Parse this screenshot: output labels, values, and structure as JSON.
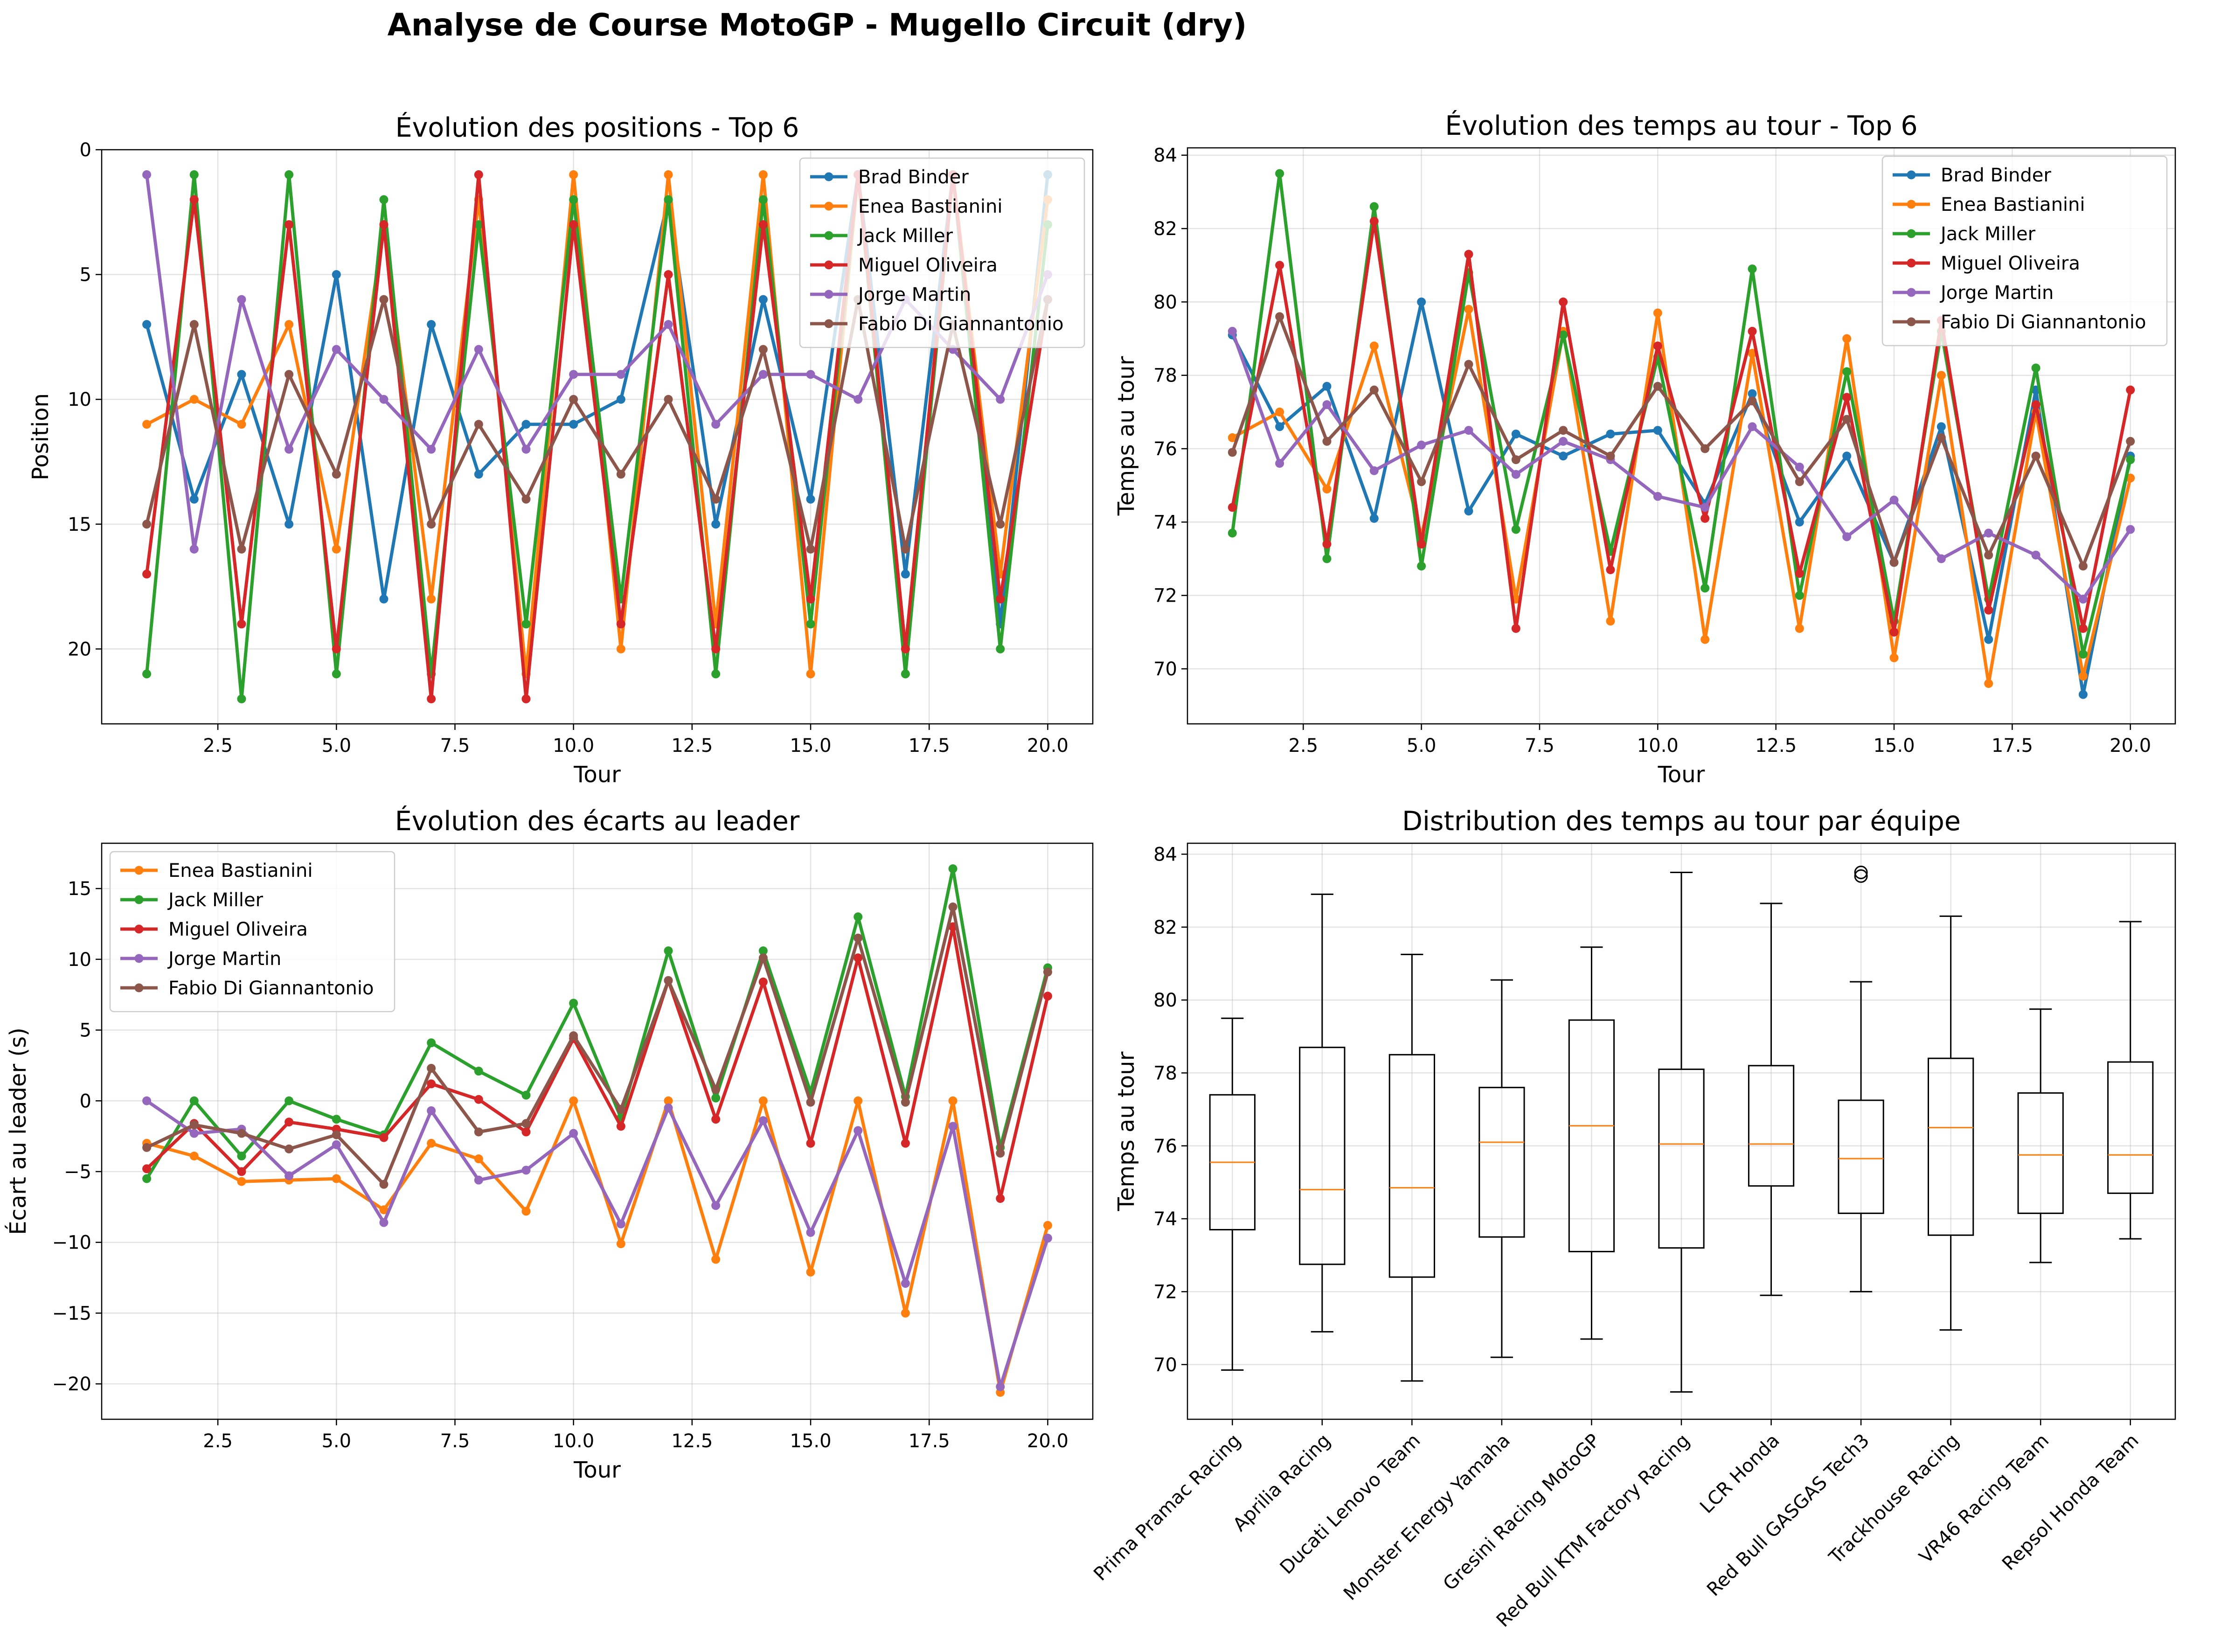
{
  "figure": {
    "title": "Analyse de Course MotoGP - Mugello Circuit (dry)"
  },
  "colors": {
    "Brad Binder": "#1f77b4",
    "Enea Bastianini": "#ff7f0e",
    "Jack Miller": "#2ca02c",
    "Miguel Oliveira": "#d62728",
    "Jorge Martin": "#9467bd",
    "Fabio Di Giannantonio": "#8c564b",
    "median": "#ff7f0e"
  },
  "chart_data": [
    {
      "id": "positions",
      "type": "line",
      "title": "Évolution des positions - Top 6",
      "xlabel": "Tour",
      "ylabel": "Position",
      "xlim": [
        0.05,
        20.95
      ],
      "ylim": [
        23,
        0
      ],
      "y_inverted": true,
      "xticks": [
        2.5,
        5.0,
        7.5,
        10.0,
        12.5,
        15.0,
        17.5,
        20.0
      ],
      "xtick_labels": [
        "2.5",
        "5.0",
        "7.5",
        "10.0",
        "12.5",
        "15.0",
        "17.5",
        "20.0"
      ],
      "yticks": [
        0,
        5,
        10,
        15,
        20
      ],
      "ytick_labels": [
        "0",
        "5",
        "10",
        "15",
        "20"
      ],
      "grid": true,
      "legend": "upper-right",
      "x": [
        1,
        2,
        3,
        4,
        5,
        6,
        7,
        8,
        9,
        10,
        11,
        12,
        13,
        14,
        15,
        16,
        17,
        18,
        19,
        20
      ],
      "series": [
        {
          "name": "Brad Binder",
          "values": [
            7,
            14,
            9,
            15,
            5,
            18,
            7,
            13,
            11,
            11,
            10,
            2,
            15,
            6,
            14,
            1,
            17,
            1,
            19,
            1
          ]
        },
        {
          "name": "Enea Bastianini",
          "values": [
            11,
            10,
            11,
            7,
            16,
            3,
            18,
            2,
            21,
            1,
            20,
            1,
            19,
            1,
            21,
            1,
            20,
            1,
            17,
            2
          ]
        },
        {
          "name": "Jack Miller",
          "values": [
            21,
            1,
            22,
            1,
            21,
            2,
            21,
            3,
            19,
            2,
            18,
            2,
            21,
            2,
            19,
            1,
            21,
            1,
            20,
            3
          ]
        },
        {
          "name": "Miguel Oliveira",
          "values": [
            17,
            2,
            19,
            3,
            20,
            3,
            22,
            1,
            22,
            3,
            19,
            5,
            20,
            3,
            18,
            1,
            20,
            1,
            18,
            6
          ]
        },
        {
          "name": "Jorge Martin",
          "values": [
            1,
            16,
            6,
            12,
            8,
            10,
            12,
            8,
            12,
            9,
            9,
            7,
            11,
            9,
            9,
            10,
            6,
            8,
            10,
            5
          ]
        },
        {
          "name": "Fabio Di Giannantonio",
          "values": [
            15,
            7,
            16,
            9,
            13,
            6,
            15,
            11,
            14,
            10,
            13,
            10,
            14,
            8,
            16,
            6,
            16,
            7,
            15,
            6
          ]
        }
      ]
    },
    {
      "id": "laptimes",
      "type": "line",
      "title": "Évolution des temps au tour - Top 6",
      "xlabel": "Tour",
      "ylabel": "Temps au tour",
      "xlim": [
        0.05,
        20.95
      ],
      "ylim": [
        68.5,
        84.2
      ],
      "xticks": [
        2.5,
        5.0,
        7.5,
        10.0,
        12.5,
        15.0,
        17.5,
        20.0
      ],
      "xtick_labels": [
        "2.5",
        "5.0",
        "7.5",
        "10.0",
        "12.5",
        "15.0",
        "17.5",
        "20.0"
      ],
      "yticks": [
        70,
        72,
        74,
        76,
        78,
        80,
        82,
        84
      ],
      "ytick_labels": [
        "70",
        "72",
        "74",
        "76",
        "78",
        "80",
        "82",
        "84"
      ],
      "grid": true,
      "legend": "upper-right",
      "x": [
        1,
        2,
        3,
        4,
        5,
        6,
        7,
        8,
        9,
        10,
        11,
        12,
        13,
        14,
        15,
        16,
        17,
        18,
        19,
        20
      ],
      "series": [
        {
          "name": "Brad Binder",
          "values": [
            79.1,
            76.6,
            77.7,
            74.1,
            80.0,
            74.3,
            76.4,
            75.8,
            76.4,
            76.5,
            74.5,
            77.5,
            74.0,
            75.8,
            72.9,
            76.6,
            70.8,
            77.6,
            69.3,
            75.8
          ]
        },
        {
          "name": "Enea Bastianini",
          "values": [
            76.3,
            77.0,
            74.9,
            78.8,
            73.6,
            79.8,
            71.9,
            79.2,
            71.3,
            79.7,
            70.8,
            78.6,
            71.1,
            79.0,
            70.3,
            78.0,
            69.6,
            77.0,
            69.8,
            75.2
          ]
        },
        {
          "name": "Jack Miller",
          "values": [
            73.7,
            83.5,
            73.0,
            82.6,
            72.8,
            80.8,
            73.8,
            79.1,
            73.2,
            78.5,
            72.2,
            80.9,
            72.0,
            78.1,
            71.3,
            79.2,
            71.9,
            78.2,
            70.4,
            75.7
          ]
        },
        {
          "name": "Miguel Oliveira",
          "values": [
            74.4,
            81.0,
            73.4,
            82.2,
            73.4,
            81.3,
            71.1,
            80.0,
            72.7,
            78.8,
            74.1,
            79.2,
            72.6,
            77.4,
            71.0,
            79.5,
            71.6,
            77.2,
            71.1,
            77.6
          ]
        },
        {
          "name": "Jorge Martin",
          "values": [
            79.2,
            75.6,
            77.2,
            75.4,
            76.1,
            76.5,
            75.3,
            76.2,
            75.7,
            74.7,
            74.4,
            76.6,
            75.5,
            73.6,
            74.6,
            73.0,
            73.7,
            73.1,
            71.9,
            73.8
          ]
        },
        {
          "name": "Fabio Di Giannantonio",
          "values": [
            75.9,
            79.6,
            76.2,
            77.6,
            75.1,
            78.3,
            75.7,
            76.5,
            75.8,
            77.7,
            76.0,
            77.3,
            75.1,
            76.8,
            72.9,
            76.3,
            73.1,
            75.8,
            72.8,
            76.2
          ]
        }
      ]
    },
    {
      "id": "gaps",
      "type": "line",
      "title": "Évolution des écarts au leader",
      "xlabel": "Tour",
      "ylabel": "Écart au leader (s)",
      "xlim": [
        0.05,
        20.95
      ],
      "ylim": [
        -22.5,
        18.2
      ],
      "xticks": [
        2.5,
        5.0,
        7.5,
        10.0,
        12.5,
        15.0,
        17.5,
        20.0
      ],
      "xtick_labels": [
        "2.5",
        "5.0",
        "7.5",
        "10.0",
        "12.5",
        "15.0",
        "17.5",
        "20.0"
      ],
      "yticks": [
        -20,
        -15,
        -10,
        -5,
        0,
        5,
        10,
        15
      ],
      "ytick_labels": [
        "−20",
        "−15",
        "−10",
        "−5",
        "0",
        "5",
        "10",
        "15"
      ],
      "grid": true,
      "legend": "upper-left",
      "x": [
        1,
        2,
        3,
        4,
        5,
        6,
        7,
        8,
        9,
        10,
        11,
        12,
        13,
        14,
        15,
        16,
        17,
        18,
        19,
        20
      ],
      "series": [
        {
          "name": "Enea Bastianini",
          "values": [
            -3.0,
            -3.9,
            -5.7,
            -5.6,
            -5.5,
            -7.7,
            -3.0,
            -4.1,
            -7.8,
            0.0,
            -10.1,
            0.0,
            -11.2,
            0.0,
            -12.1,
            0.0,
            -15.0,
            0.0,
            -20.6,
            -8.8
          ]
        },
        {
          "name": "Jack Miller",
          "values": [
            -5.5,
            0.0,
            -3.9,
            0.0,
            -1.3,
            -2.4,
            4.1,
            2.1,
            0.4,
            6.9,
            -1.2,
            10.6,
            0.2,
            10.6,
            0.6,
            13.0,
            0.3,
            16.4,
            -3.3,
            9.4
          ]
        },
        {
          "name": "Miguel Oliveira",
          "values": [
            -4.8,
            -1.6,
            -5.0,
            -1.5,
            -2.0,
            -2.6,
            1.2,
            0.1,
            -2.2,
            4.4,
            -1.8,
            8.5,
            -1.3,
            8.4,
            -3.0,
            10.1,
            -3.0,
            12.3,
            -6.9,
            7.4
          ]
        },
        {
          "name": "Jorge Martin",
          "values": [
            0.0,
            -2.3,
            -2.0,
            -5.3,
            -3.1,
            -8.6,
            -0.7,
            -5.6,
            -4.9,
            -2.3,
            -8.7,
            -0.5,
            -7.4,
            -1.4,
            -9.3,
            -2.1,
            -12.9,
            -1.8,
            -20.2,
            -9.7
          ]
        },
        {
          "name": "Fabio Di Giannantonio",
          "values": [
            -3.3,
            -1.7,
            -2.3,
            -3.4,
            -2.4,
            -5.9,
            2.3,
            -2.2,
            -1.6,
            4.6,
            -0.6,
            8.5,
            0.8,
            10.1,
            -0.1,
            11.5,
            -0.1,
            13.7,
            -3.7,
            9.1
          ]
        }
      ]
    },
    {
      "id": "team_boxplot",
      "type": "box",
      "title": "Distribution des temps au tour par équipe",
      "xlabel": "",
      "ylabel": "Temps au tour",
      "ylim": [
        68.5,
        84.3
      ],
      "yticks": [
        70,
        72,
        74,
        76,
        78,
        80,
        82,
        84
      ],
      "ytick_labels": [
        "70",
        "72",
        "74",
        "76",
        "78",
        "80",
        "82",
        "84"
      ],
      "grid": true,
      "categories": [
        "Prima Pramac Racing",
        "Aprilia Racing",
        "Ducati Lenovo Team",
        "Monster Energy Yamaha",
        "Gresini Racing MotoGP",
        "Red Bull KTM Factory Racing",
        "LCR Honda",
        "Red Bull GASGAS Tech3",
        "Trackhouse Racing",
        "VR46 Racing Team",
        "Repsol Honda Team"
      ],
      "boxes": [
        {
          "whislo": 69.85,
          "q1": 73.7,
          "med": 75.55,
          "q3": 77.4,
          "whishi": 79.5,
          "fliers": []
        },
        {
          "whislo": 70.9,
          "q1": 72.75,
          "med": 74.8,
          "q3": 78.7,
          "whishi": 82.9,
          "fliers": []
        },
        {
          "whislo": 69.55,
          "q1": 72.4,
          "med": 74.85,
          "q3": 78.5,
          "whishi": 81.25,
          "fliers": []
        },
        {
          "whislo": 70.2,
          "q1": 73.5,
          "med": 76.1,
          "q3": 77.6,
          "whishi": 80.55,
          "fliers": []
        },
        {
          "whislo": 70.7,
          "q1": 73.1,
          "med": 76.55,
          "q3": 79.45,
          "whishi": 81.45,
          "fliers": []
        },
        {
          "whislo": 69.25,
          "q1": 73.2,
          "med": 76.05,
          "q3": 78.1,
          "whishi": 83.5,
          "fliers": []
        },
        {
          "whislo": 71.9,
          "q1": 74.9,
          "med": 76.05,
          "q3": 78.2,
          "whishi": 82.65,
          "fliers": []
        },
        {
          "whislo": 72.0,
          "q1": 74.15,
          "med": 75.65,
          "q3": 77.25,
          "whishi": 80.5,
          "fliers": [
            83.4,
            83.5
          ]
        },
        {
          "whislo": 70.95,
          "q1": 73.55,
          "med": 76.5,
          "q3": 78.4,
          "whishi": 82.3,
          "fliers": []
        },
        {
          "whislo": 72.8,
          "q1": 74.15,
          "med": 75.75,
          "q3": 77.45,
          "whishi": 79.75,
          "fliers": []
        },
        {
          "whislo": 73.45,
          "q1": 74.7,
          "med": 75.75,
          "q3": 78.3,
          "whishi": 82.15,
          "fliers": []
        }
      ]
    }
  ]
}
